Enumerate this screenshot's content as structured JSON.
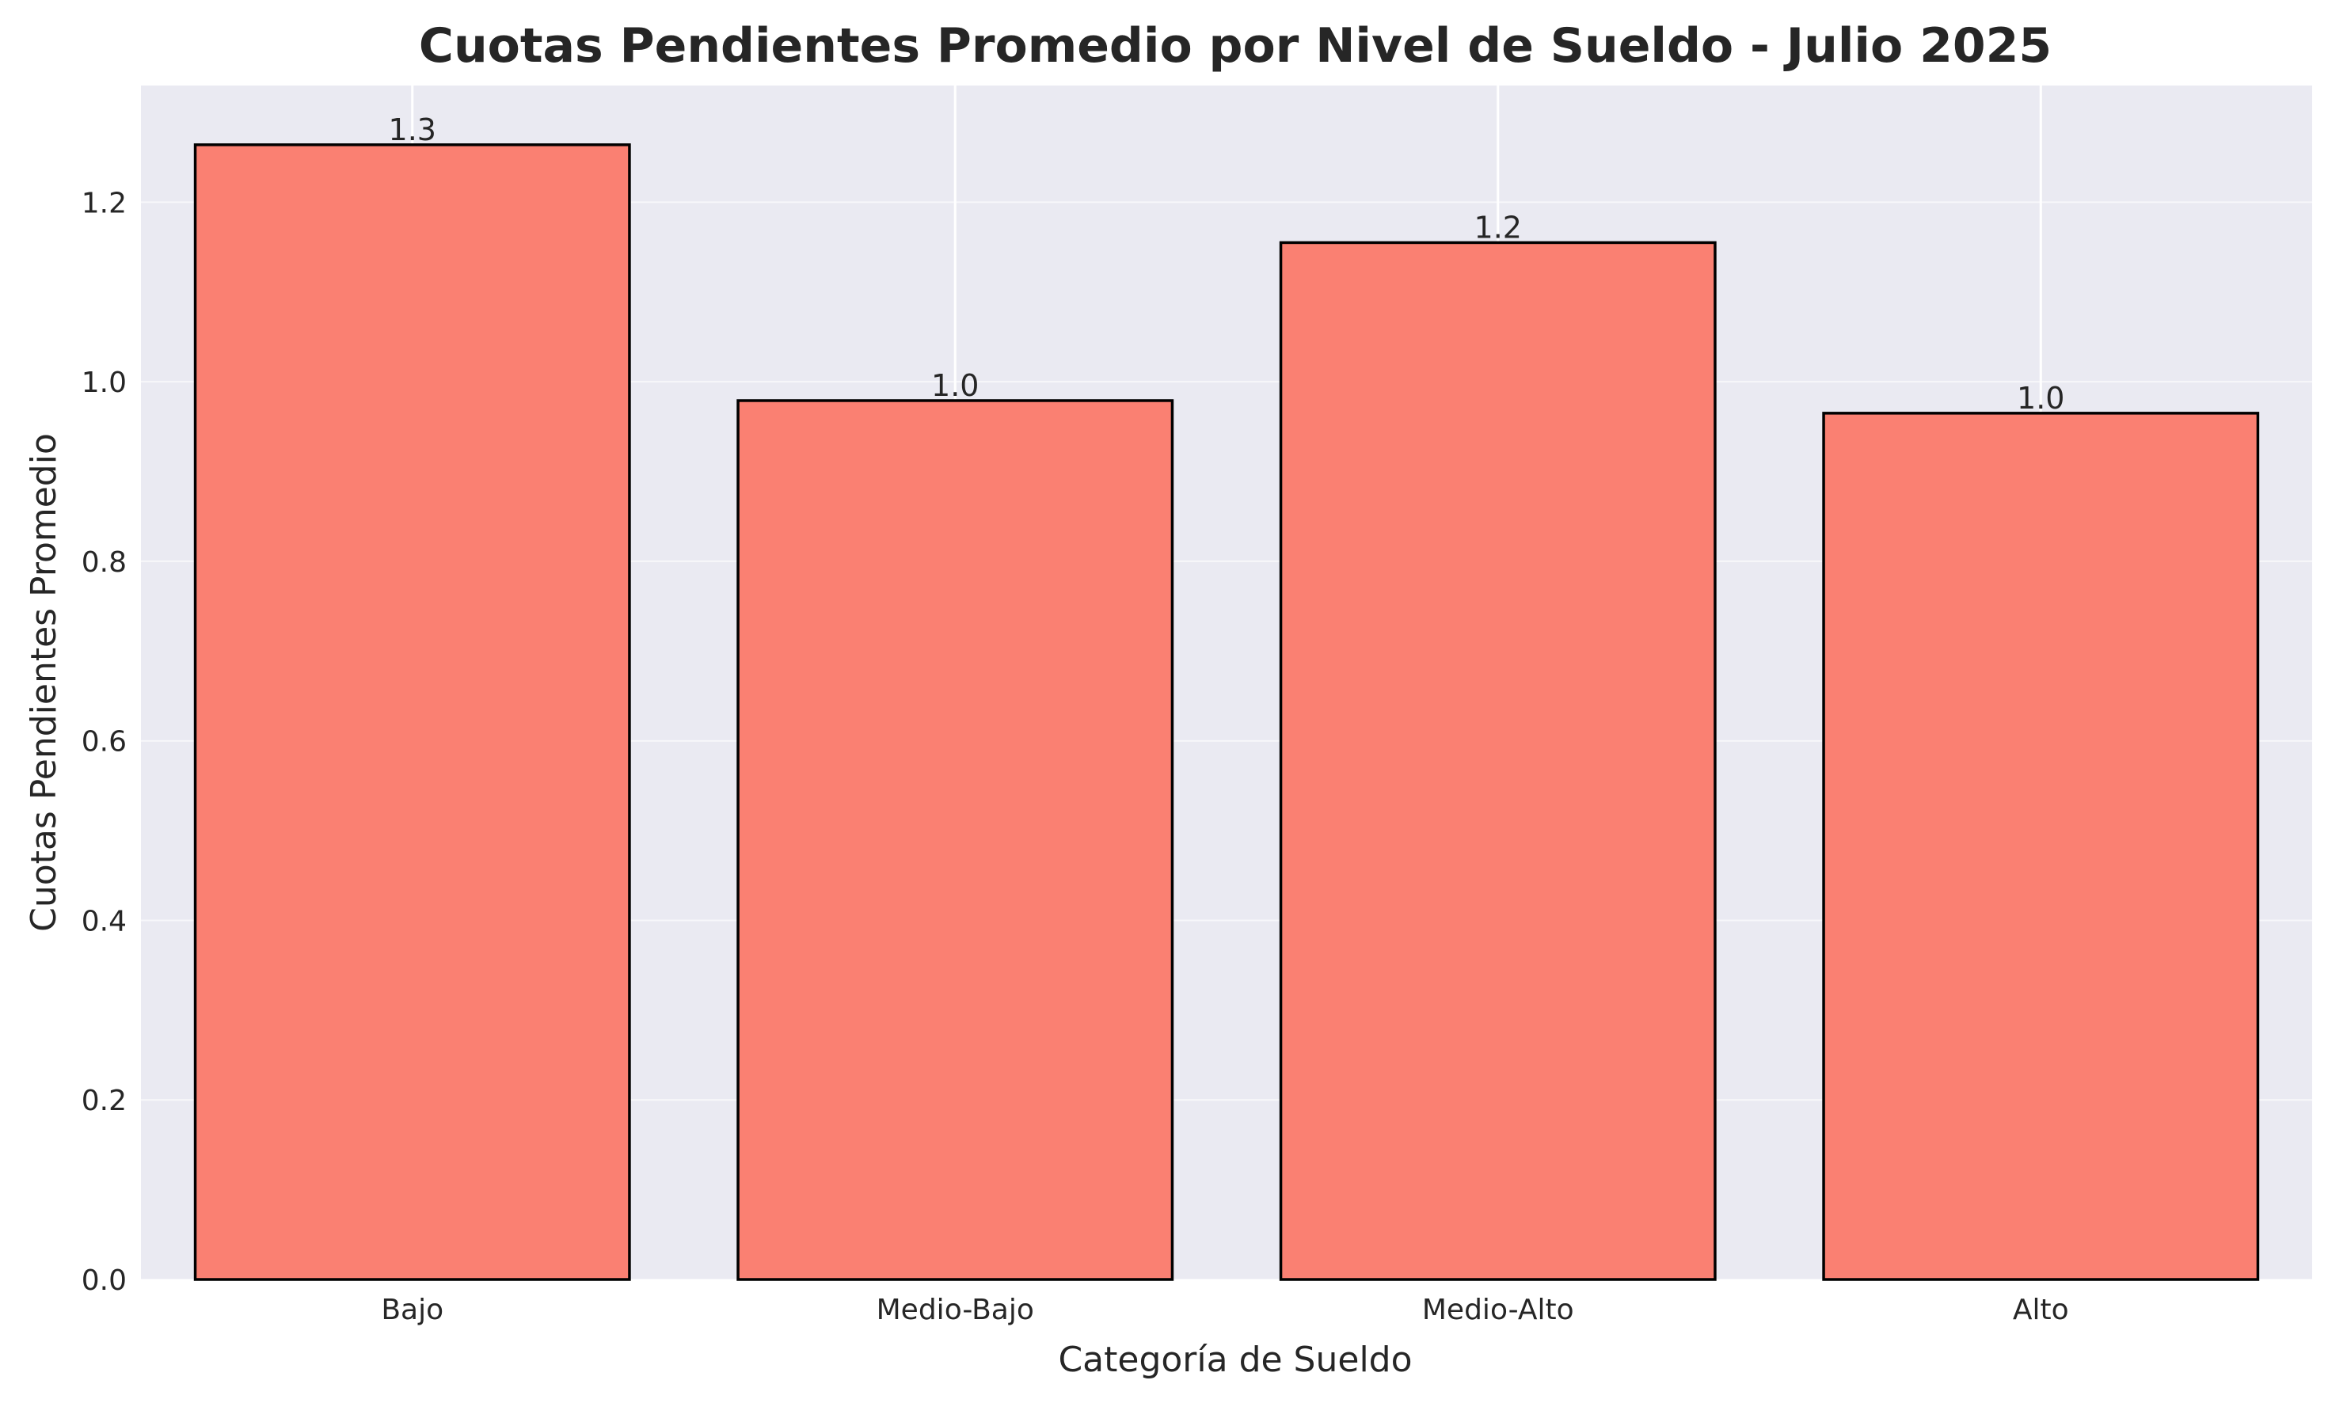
{
  "chart_data": {
    "type": "bar",
    "title": "Cuotas Pendientes Promedio por Nivel de Sueldo - Julio 2025",
    "xlabel": "Categoría de Sueldo",
    "ylabel": "Cuotas Pendientes Promedio",
    "categories": [
      "Bajo",
      "Medio-Bajo",
      "Medio-Alto",
      "Alto"
    ],
    "values": [
      1.264,
      0.979,
      1.155,
      0.965
    ],
    "data_labels": [
      "1.3",
      "1.0",
      "1.2",
      "1.0"
    ],
    "ylim": [
      0,
      1.33
    ],
    "yticks": [
      0.0,
      0.2,
      0.4,
      0.6,
      0.8,
      1.0,
      1.2
    ],
    "ytick_labels": [
      "0.0",
      "0.2",
      "0.4",
      "0.6",
      "0.8",
      "1.0",
      "1.2"
    ],
    "grid": true,
    "legend": "none",
    "colors": {
      "bar_fill": "#FA8072",
      "bar_edge": "#000000",
      "plot_background": "#EAEAF2",
      "grid": "#FFFFFF"
    }
  }
}
